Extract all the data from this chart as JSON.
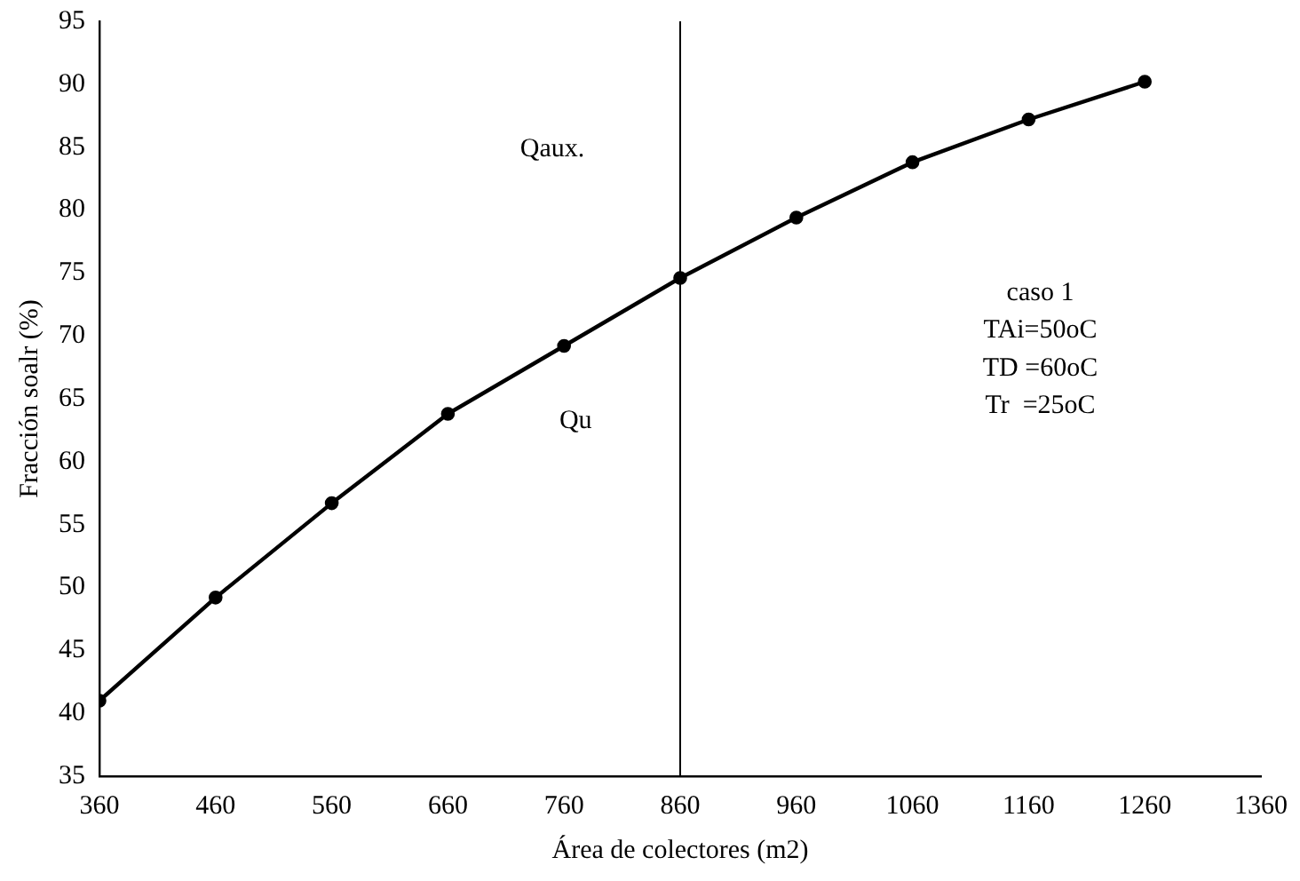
{
  "chart_data": {
    "type": "line",
    "xlabel": "Área de colectores (m2)",
    "ylabel": "Fracción soalr (%)",
    "x": [
      360,
      460,
      560,
      660,
      760,
      860,
      960,
      1060,
      1160,
      1260
    ],
    "series": [
      {
        "color": "#000000",
        "values": [
          41,
          49.2,
          56.7,
          63.8,
          69.2,
          74.6,
          79.4,
          83.8,
          87.2,
          90.2
        ]
      }
    ],
    "xlim": [
      360,
      1360
    ],
    "xticks": [
      360,
      460,
      560,
      660,
      760,
      860,
      960,
      1060,
      1160,
      1260,
      1360
    ],
    "ylim": [
      35,
      95
    ],
    "yticks": [
      35,
      40,
      45,
      50,
      55,
      60,
      65,
      70,
      75,
      80,
      85,
      90,
      95
    ],
    "ref_lines": [
      {
        "axis": "x",
        "value": 860,
        "color": "#000000",
        "line_style": "solid"
      }
    ],
    "annotations": [
      "Qaux.",
      "Qu",
      "caso 1",
      "TAi=50oC",
      "TD =60oC",
      "Tr  =25oC"
    ],
    "grid": false,
    "legend": false,
    "marker": "circle",
    "line_style": "solid"
  }
}
